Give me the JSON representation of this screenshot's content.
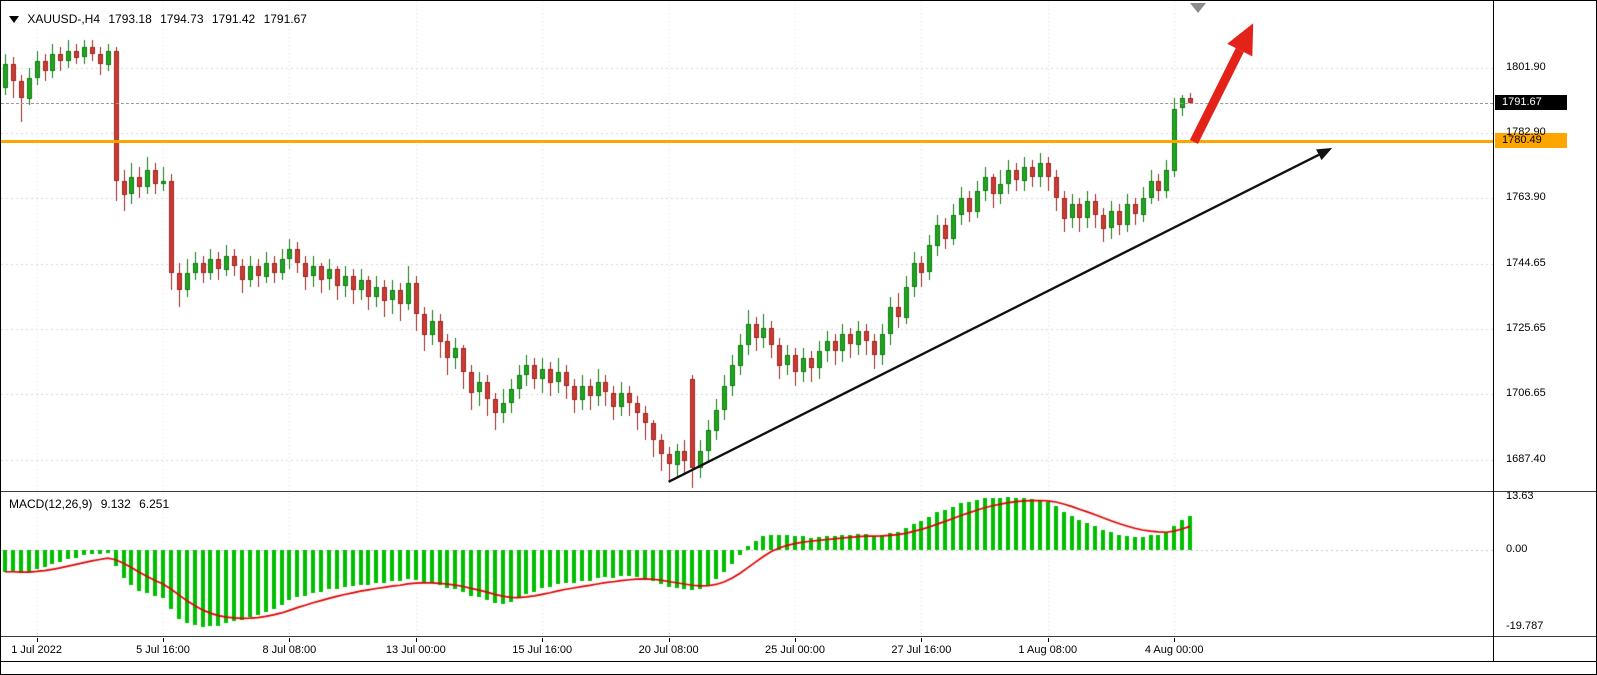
{
  "window": {
    "symbol_period": "XAUUSD-,H4",
    "open": "1793.18",
    "high": "1794.73",
    "low": "1791.42",
    "close": "1791.67"
  },
  "indicator": {
    "label": "MACD(12,26,9)",
    "main_value": "9.132",
    "signal_value": "6.251"
  },
  "colors": {
    "bull_fill": "#21a621",
    "bull_edge": "#0e7a0e",
    "bear_fill": "#cd3b34",
    "bear_edge": "#9c241f",
    "grid": "#d9d9d9",
    "macd_hist": "#00be00",
    "macd_signal": "#e00000",
    "hline_orange": "#ffa500",
    "trend_black": "#111111",
    "arrow_red": "#e32219",
    "current_badge_bg": "#000000",
    "current_badge_text": "#ffffff",
    "hline_badge_bg": "#ffa500",
    "hline_badge_text": "#000000"
  },
  "chart_data": {
    "type": "candlestick",
    "symbol": "XAUUSD-",
    "timeframe": "H4",
    "price_axis": {
      "y_top_price": 1821.5,
      "y_bottom_price": 1678.2,
      "tick_labels": [
        "1801.90",
        "1782.90",
        "1763.90",
        "1744.65",
        "1725.65",
        "1706.65",
        "1687.40"
      ],
      "current_price": 1791.67,
      "current_price_label": "1791.67"
    },
    "time_axis": {
      "ticks": [
        {
          "bar": 4,
          "label": "1 Jul 2022"
        },
        {
          "bar": 20,
          "label": "5 Jul 16:00"
        },
        {
          "bar": 36,
          "label": "8 Jul 08:00"
        },
        {
          "bar": 52,
          "label": "13 Jul 00:00"
        },
        {
          "bar": 68,
          "label": "15 Jul 16:00"
        },
        {
          "bar": 84,
          "label": "20 Jul 08:00"
        },
        {
          "bar": 100,
          "label": "25 Jul 00:00"
        },
        {
          "bar": 116,
          "label": "27 Jul 16:00"
        },
        {
          "bar": 132,
          "label": "1 Aug 08:00"
        },
        {
          "bar": 148,
          "label": "4 Aug 00:00"
        }
      ]
    },
    "overlays": {
      "hline_price": 1780.49,
      "hline_label": "1780.49",
      "trend_line": {
        "from_bar": 84,
        "from_price": 1680.9,
        "to_bar": 168,
        "to_price": 1778.5
      },
      "red_arrow": {
        "from_bar": 150.5,
        "from_price": 1780.3,
        "to_bar": 158,
        "to_price": 1815.0
      },
      "top_marker_bar": 151
    },
    "macd": {
      "fast": 12,
      "slow": 26,
      "signal": 9,
      "display_max": 13.63,
      "display_min": -19.787,
      "tick_labels": [
        "13.63",
        "0.00",
        "-19.787"
      ],
      "current_main": 9.132,
      "current_signal": 6.251
    },
    "candles": [
      [
        1796,
        1806,
        1794,
        1803
      ],
      [
        1803,
        1805,
        1793,
        1798
      ],
      [
        1798,
        1800,
        1786,
        1793
      ],
      [
        1793,
        1802,
        1791,
        1799
      ],
      [
        1799,
        1807,
        1797,
        1804
      ],
      [
        1804,
        1806,
        1798,
        1801
      ],
      [
        1801,
        1809,
        1799,
        1806
      ],
      [
        1806,
        1808,
        1801,
        1804
      ],
      [
        1804,
        1810,
        1802,
        1807
      ],
      [
        1807,
        1809,
        1803,
        1805
      ],
      [
        1805,
        1810,
        1803,
        1808
      ],
      [
        1808,
        1810,
        1804,
        1806
      ],
      [
        1806,
        1808,
        1800,
        1803
      ],
      [
        1803,
        1809,
        1801,
        1807
      ],
      [
        1807,
        1808,
        1763,
        1769
      ],
      [
        1769,
        1772,
        1760,
        1765
      ],
      [
        1765,
        1774,
        1762,
        1770
      ],
      [
        1770,
        1773,
        1764,
        1767
      ],
      [
        1767,
        1776,
        1765,
        1772
      ],
      [
        1772,
        1774,
        1765,
        1768
      ],
      [
        1768,
        1773,
        1766,
        1769
      ],
      [
        1769,
        1771,
        1737,
        1742
      ],
      [
        1742,
        1745,
        1732,
        1737
      ],
      [
        1737,
        1746,
        1735,
        1742
      ],
      [
        1742,
        1748,
        1740,
        1745
      ],
      [
        1745,
        1747,
        1739,
        1742
      ],
      [
        1742,
        1749,
        1740,
        1746
      ],
      [
        1746,
        1748,
        1740,
        1743
      ],
      [
        1743,
        1750,
        1741,
        1747
      ],
      [
        1747,
        1749,
        1741,
        1744
      ],
      [
        1744,
        1746,
        1736,
        1740
      ],
      [
        1740,
        1747,
        1738,
        1744
      ],
      [
        1744,
        1746,
        1738,
        1741
      ],
      [
        1741,
        1748,
        1739,
        1745
      ],
      [
        1745,
        1747,
        1739,
        1742
      ],
      [
        1742,
        1749,
        1740,
        1746
      ],
      [
        1746,
        1752,
        1743,
        1749
      ],
      [
        1749,
        1751,
        1742,
        1745
      ],
      [
        1745,
        1747,
        1737,
        1741
      ],
      [
        1741,
        1747,
        1738,
        1744
      ],
      [
        1744,
        1745,
        1736,
        1740
      ],
      [
        1740,
        1746,
        1737,
        1743
      ],
      [
        1743,
        1744,
        1734,
        1738
      ],
      [
        1738,
        1744,
        1735,
        1741
      ],
      [
        1741,
        1743,
        1733,
        1737
      ],
      [
        1737,
        1743,
        1734,
        1740
      ],
      [
        1740,
        1741,
        1731,
        1735
      ],
      [
        1735,
        1741,
        1732,
        1738
      ],
      [
        1738,
        1740,
        1729,
        1734
      ],
      [
        1734,
        1740,
        1730,
        1737
      ],
      [
        1737,
        1739,
        1728,
        1733
      ],
      [
        1733,
        1744,
        1731,
        1739
      ],
      [
        1739,
        1741,
        1725,
        1730
      ],
      [
        1730,
        1732,
        1719,
        1724
      ],
      [
        1724,
        1731,
        1721,
        1728
      ],
      [
        1728,
        1730,
        1717,
        1722
      ],
      [
        1722,
        1724,
        1712,
        1717
      ],
      [
        1717,
        1723,
        1714,
        1720
      ],
      [
        1720,
        1721,
        1708,
        1713
      ],
      [
        1713,
        1715,
        1702,
        1707
      ],
      [
        1707,
        1713,
        1703,
        1710
      ],
      [
        1710,
        1712,
        1700,
        1705
      ],
      [
        1705,
        1707,
        1696,
        1701
      ],
      [
        1701,
        1708,
        1698,
        1704
      ],
      [
        1704,
        1711,
        1701,
        1708
      ],
      [
        1708,
        1715,
        1705,
        1712
      ],
      [
        1712,
        1718,
        1709,
        1715
      ],
      [
        1715,
        1717,
        1708,
        1711
      ],
      [
        1711,
        1717,
        1707,
        1714
      ],
      [
        1714,
        1716,
        1706,
        1710
      ],
      [
        1710,
        1717,
        1707,
        1713
      ],
      [
        1713,
        1715,
        1705,
        1709
      ],
      [
        1709,
        1711,
        1701,
        1705
      ],
      [
        1705,
        1712,
        1702,
        1709
      ],
      [
        1709,
        1711,
        1702,
        1706
      ],
      [
        1706,
        1714,
        1703,
        1710
      ],
      [
        1710,
        1712,
        1703,
        1707
      ],
      [
        1707,
        1709,
        1699,
        1703
      ],
      [
        1703,
        1710,
        1700,
        1707
      ],
      [
        1707,
        1709,
        1700,
        1704
      ],
      [
        1704,
        1706,
        1696,
        1701
      ],
      [
        1701,
        1703,
        1693,
        1698
      ],
      [
        1698,
        1699,
        1688,
        1693
      ],
      [
        1693,
        1695,
        1684,
        1689
      ],
      [
        1689,
        1691,
        1681,
        1686
      ],
      [
        1686,
        1692,
        1682,
        1690
      ],
      [
        1690,
        1693,
        1683,
        1687
      ],
      [
        1711,
        1712,
        1679,
        1685
      ],
      [
        1685,
        1693,
        1682,
        1690
      ],
      [
        1690,
        1699,
        1687,
        1696
      ],
      [
        1696,
        1705,
        1693,
        1702
      ],
      [
        1702,
        1712,
        1699,
        1709
      ],
      [
        1709,
        1718,
        1706,
        1715
      ],
      [
        1715,
        1724,
        1712,
        1721
      ],
      [
        1721,
        1731,
        1718,
        1727
      ],
      [
        1727,
        1729,
        1719,
        1723
      ],
      [
        1723,
        1730,
        1720,
        1726
      ],
      [
        1726,
        1728,
        1717,
        1721
      ],
      [
        1721,
        1723,
        1711,
        1715
      ],
      [
        1715,
        1721,
        1712,
        1718
      ],
      [
        1718,
        1720,
        1709,
        1713
      ],
      [
        1713,
        1720,
        1710,
        1717
      ],
      [
        1717,
        1719,
        1710,
        1714
      ],
      [
        1714,
        1722,
        1711,
        1719
      ],
      [
        1719,
        1725,
        1716,
        1722
      ],
      [
        1722,
        1724,
        1715,
        1719
      ],
      [
        1719,
        1727,
        1716,
        1724
      ],
      [
        1724,
        1726,
        1717,
        1721
      ],
      [
        1721,
        1728,
        1718,
        1725
      ],
      [
        1725,
        1727,
        1718,
        1722
      ],
      [
        1722,
        1724,
        1714,
        1718
      ],
      [
        1718,
        1727,
        1715,
        1724
      ],
      [
        1724,
        1735,
        1721,
        1732
      ],
      [
        1732,
        1736,
        1726,
        1729
      ],
      [
        1729,
        1741,
        1727,
        1738
      ],
      [
        1738,
        1748,
        1735,
        1745
      ],
      [
        1745,
        1747,
        1738,
        1742
      ],
      [
        1742,
        1753,
        1740,
        1750
      ],
      [
        1750,
        1759,
        1747,
        1756
      ],
      [
        1756,
        1758,
        1749,
        1752
      ],
      [
        1752,
        1762,
        1750,
        1759
      ],
      [
        1759,
        1767,
        1756,
        1764
      ],
      [
        1764,
        1766,
        1757,
        1760
      ],
      [
        1760,
        1769,
        1758,
        1766
      ],
      [
        1766,
        1773,
        1763,
        1770
      ],
      [
        1770,
        1771,
        1761,
        1765
      ],
      [
        1765,
        1772,
        1762,
        1768
      ],
      [
        1768,
        1775,
        1765,
        1772
      ],
      [
        1772,
        1774,
        1766,
        1769
      ],
      [
        1769,
        1776,
        1766,
        1773
      ],
      [
        1773,
        1775,
        1767,
        1770
      ],
      [
        1770,
        1777,
        1767,
        1774
      ],
      [
        1774,
        1776,
        1766,
        1770
      ],
      [
        1770,
        1772,
        1760,
        1764
      ],
      [
        1764,
        1766,
        1754,
        1758
      ],
      [
        1758,
        1765,
        1755,
        1762
      ],
      [
        1762,
        1764,
        1754,
        1758
      ],
      [
        1758,
        1766,
        1755,
        1763
      ],
      [
        1763,
        1765,
        1755,
        1759
      ],
      [
        1759,
        1761,
        1751,
        1755
      ],
      [
        1755,
        1763,
        1752,
        1760
      ],
      [
        1760,
        1762,
        1753,
        1756
      ],
      [
        1756,
        1765,
        1754,
        1762
      ],
      [
        1762,
        1764,
        1756,
        1759
      ],
      [
        1759,
        1767,
        1757,
        1764
      ],
      [
        1764,
        1772,
        1762,
        1769
      ],
      [
        1769,
        1771,
        1763,
        1766
      ],
      [
        1766,
        1775,
        1764,
        1772
      ],
      [
        1772,
        1793,
        1770,
        1790
      ],
      [
        1790,
        1794,
        1788,
        1793
      ],
      [
        1793.18,
        1794.73,
        1791.42,
        1791.67
      ]
    ]
  }
}
